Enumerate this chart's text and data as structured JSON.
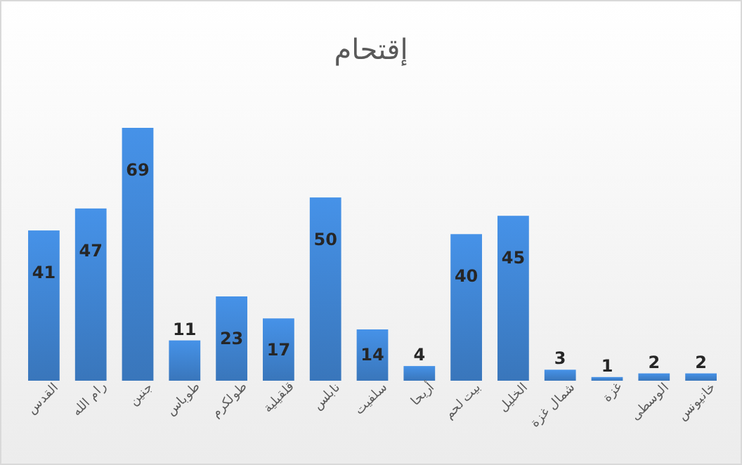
{
  "chart_data": {
    "type": "bar",
    "title": "إقتحام",
    "categories": [
      "القدس",
      "رام الله",
      "جنين",
      "طوباس",
      "طولكرم",
      "قلقيلية",
      "نابلس",
      "سلفيت",
      "أريحا",
      "بيت لحم",
      "الخليل",
      "شمال غزة",
      "غزة",
      "الوسطى",
      "خانيونس"
    ],
    "values": [
      41,
      47,
      69,
      11,
      23,
      17,
      50,
      14,
      4,
      40,
      45,
      3,
      1,
      2,
      2
    ],
    "color": "#3d7fc9",
    "data_labels": true
  }
}
